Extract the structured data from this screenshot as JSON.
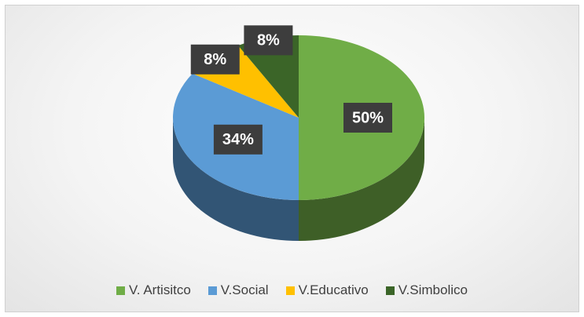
{
  "chart_data": {
    "type": "pie",
    "categories": [
      "V. Artisitco",
      "V.Social",
      "V.Educativo",
      "V.Simbolico"
    ],
    "values": [
      50,
      34,
      8,
      8
    ],
    "value_labels": [
      "50%",
      "34%",
      "8%",
      "8%"
    ],
    "colors": [
      "#70ad47",
      "#5b9bd5",
      "#ffc000",
      "#3b6528"
    ],
    "legend": "bottom"
  }
}
